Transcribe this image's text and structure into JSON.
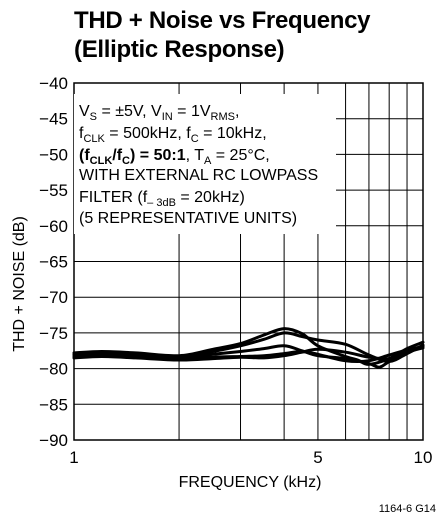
{
  "chart_data": {
    "type": "line",
    "title_line1": "THD + Noise vs Frequency",
    "title_line2": "(Elliptic Response)",
    "xlabel": "FREQUENCY (kHz)",
    "ylabel": "THD + NOISE (dB)",
    "x_scale": "log",
    "xlim": [
      1,
      10
    ],
    "ylim": [
      -90,
      -40
    ],
    "x_ticks": [
      1,
      5,
      10
    ],
    "x_tick_labels": [
      "1",
      "5",
      "10"
    ],
    "y_ticks": [
      -40,
      -45,
      -50,
      -55,
      -60,
      -65,
      -70,
      -75,
      -80,
      -85,
      -90
    ],
    "y_tick_labels": [
      "−40",
      "−45",
      "−50",
      "−55",
      "−60",
      "−65",
      "−70",
      "−75",
      "−80",
      "−85",
      "−90"
    ],
    "grid": true,
    "conditions": {
      "line1_a": "V",
      "line1_a_sub": "S",
      "line1_b": " = ±5V, V",
      "line1_b_sub": "IN",
      "line1_c": " = 1V",
      "line1_c_sub": "RMS",
      "line1_d": ",",
      "line2_a": "f",
      "line2_a_sub": "CLK",
      "line2_b": " = 500kHz, f",
      "line2_b_sub": "C",
      "line2_c": " = 10kHz,",
      "line3_a": "(f",
      "line3_a_sub": "CLK",
      "line3_b": "/f",
      "line3_b_sub": "C",
      "line3_c": ") = 50:1",
      "line3_d": ", T",
      "line3_d_sub": "A",
      "line3_e": " = 25°C,",
      "line4": "WITH EXTERNAL RC LOWPASS",
      "line5_a": "FILTER (f",
      "line5_a_sub": "– 3dB",
      "line5_b": " = 20kHz)",
      "line6": "(5 REPRESENTATIVE UNITS)"
    },
    "figure_code": "1164-6  G14",
    "series": [
      {
        "x": [
          1,
          1.2,
          1.5,
          2,
          2.5,
          3,
          3.5,
          4,
          4.5,
          5,
          6,
          6.5,
          7,
          8,
          9,
          10
        ],
        "y": [
          -77.8,
          -77.6,
          -77.8,
          -78.2,
          -77.3,
          -76.5,
          -75.3,
          -74.4,
          -75.1,
          -76.8,
          -78.3,
          -78.8,
          -79.4,
          -78.6,
          -77.2,
          -76.3
        ]
      },
      {
        "x": [
          1,
          1.2,
          1.5,
          2,
          2.5,
          3,
          3.5,
          4,
          4.5,
          5,
          6,
          7,
          8,
          9,
          10
        ],
        "y": [
          -78.0,
          -77.8,
          -78.0,
          -78.4,
          -77.6,
          -76.8,
          -75.9,
          -75.0,
          -75.5,
          -76.0,
          -76.6,
          -78.1,
          -79.0,
          -77.9,
          -76.7
        ]
      },
      {
        "x": [
          1,
          1.2,
          1.5,
          2,
          2.5,
          3,
          3.5,
          4,
          4.5,
          5,
          6,
          7,
          7.5,
          8,
          9,
          10
        ],
        "y": [
          -78.1,
          -77.9,
          -78.1,
          -78.5,
          -78.0,
          -77.6,
          -77.2,
          -76.8,
          -77.5,
          -78.2,
          -78.6,
          -79.3,
          -79.8,
          -79.0,
          -77.7,
          -76.8
        ]
      },
      {
        "x": [
          1,
          1.2,
          1.5,
          2,
          2.5,
          3,
          3.5,
          4,
          4.5,
          5,
          6,
          7,
          8,
          9,
          10
        ],
        "y": [
          -78.3,
          -78.1,
          -78.3,
          -78.6,
          -78.4,
          -78.3,
          -78.2,
          -77.9,
          -77.6,
          -78.0,
          -78.9,
          -78.9,
          -78.1,
          -77.4,
          -76.9
        ]
      },
      {
        "x": [
          1,
          1.2,
          1.5,
          2,
          2.5,
          3,
          3.5,
          4,
          4.5,
          5,
          6,
          7,
          8,
          9,
          10
        ],
        "y": [
          -78.5,
          -78.3,
          -78.5,
          -78.8,
          -78.6,
          -78.4,
          -78.5,
          -78.2,
          -77.7,
          -77.3,
          -77.7,
          -78.4,
          -78.6,
          -77.7,
          -77.1
        ]
      }
    ]
  }
}
